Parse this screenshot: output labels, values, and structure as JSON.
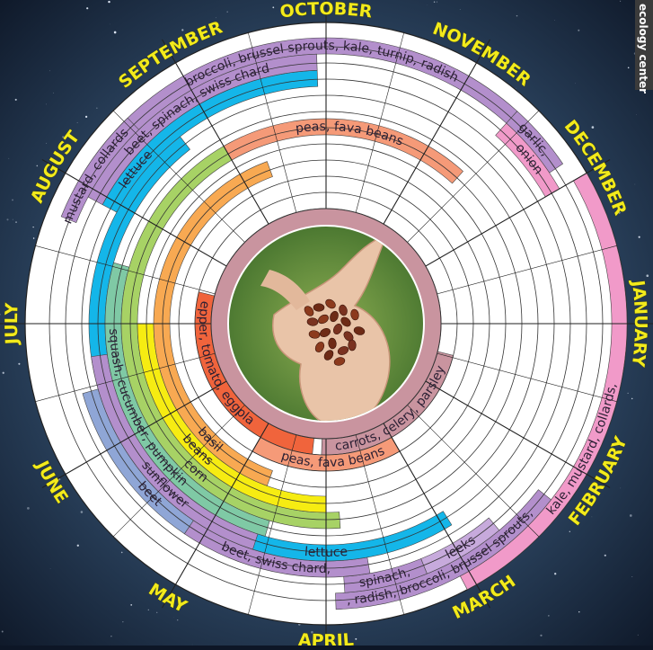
{
  "months": [
    "JANUARY",
    "FEBRUARY",
    "MARCH",
    "APRIL",
    "MAY",
    "JUNE",
    "JULY",
    "AUGUST",
    "SEPTEMBER",
    "OCTOBER",
    "NOVEMBER",
    "DECEMBER"
  ],
  "side_label": "ecology center",
  "colors": {
    "purple": "#b38fcc",
    "blue": "#14b6e9",
    "pink": "#f19ac9",
    "salmon": "#f59a78",
    "mauve": "#c9949f",
    "green": "#a7d265",
    "orange": "#f8a952",
    "yellow": "#f6ec12",
    "teal": "#7fc9a5",
    "slate": "#8fa6d6",
    "lilac": "#c7aadc",
    "red": "#f0643c"
  },
  "arcs": [
    {
      "id": "kale-mustard",
      "label": "kale, mustard, collards,",
      "color": "pink"
    },
    {
      "id": "chives-radish",
      "label": "chives, radish, broccoli, brussel sprouts, turnip",
      "color": "purple"
    },
    {
      "id": "leeks",
      "label": "leeks",
      "color": "lilac"
    },
    {
      "id": "spinach",
      "label": "spinach,",
      "color": "purple"
    },
    {
      "id": "beet-chard-spring",
      "label": "beet,   swiss chard,",
      "color": "purple"
    },
    {
      "id": "beet-spring",
      "label": "beet",
      "color": "slate"
    },
    {
      "id": "lettuce-spring",
      "label": "lettuce",
      "color": "blue"
    },
    {
      "id": "sunflower",
      "label": "sunflower",
      "color": "purple"
    },
    {
      "id": "squash",
      "label": "squash, cucumber, pumpkin",
      "color": "teal"
    },
    {
      "id": "corn",
      "label": "corn",
      "color": "green"
    },
    {
      "id": "beans-summer",
      "label": "beans",
      "color": "yellow"
    },
    {
      "id": "basil",
      "label": "basil",
      "color": "orange"
    },
    {
      "id": "pepper-tomato",
      "label": "pepper, tomato, eggplant",
      "color": "red"
    },
    {
      "id": "carrots-celery",
      "label": "carrots, celery, parsley",
      "color": "mauve"
    },
    {
      "id": "peas-fava-spring",
      "label": "peas,  fava beans",
      "color": "salmon"
    },
    {
      "id": "peas-fava-fall",
      "label": "peas,   fava beans",
      "color": "salmon"
    },
    {
      "id": "lettuce-fall",
      "label": "lettuce",
      "color": "blue"
    },
    {
      "id": "broccoli-fall",
      "label": "broccoli, brussel sprouts, kale, turnip, radish",
      "color": "purple"
    },
    {
      "id": "mustard-fall",
      "label": "mustard, collards,",
      "color": "purple"
    },
    {
      "id": "beet-chard-fall",
      "label": "beet, spinach, swiss chard",
      "color": "purple"
    },
    {
      "id": "garlic",
      "label": "garlic,",
      "color": "purple"
    },
    {
      "id": "onion",
      "label": "onion",
      "color": "pink"
    }
  ]
}
